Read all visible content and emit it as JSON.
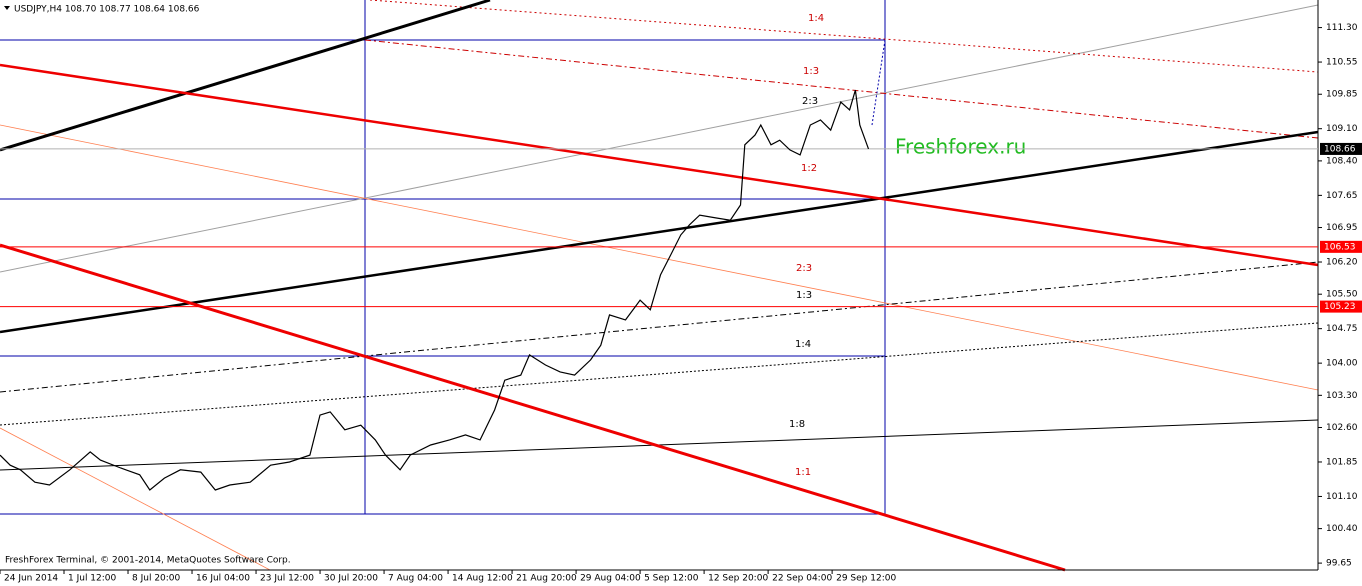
{
  "chart_data": {
    "type": "line",
    "header": "USDJPY,H4  108.70 108.77 108.64 108.66",
    "watermark": "Freshforex.ru",
    "footer": "FreshForex Terminal, © 2001-2014, MetaQuotes Software Corp.",
    "annotations": [
      "1:4",
      "1:3",
      "2:3",
      "1:2",
      "2:3",
      "1:3",
      "1:4",
      "1:8",
      "1:1"
    ],
    "x": [
      0,
      7,
      14,
      24,
      34,
      48,
      62,
      69,
      83,
      96,
      103,
      113,
      124,
      138,
      148,
      158,
      172,
      186,
      199,
      213,
      220,
      227,
      237,
      248,
      258,
      265,
      275,
      282,
      296,
      309,
      320,
      330,
      340,
      347,
      358,
      364,
      375,
      385,
      395,
      406,
      413,
      419,
      430,
      440,
      447,
      454,
      461,
      468,
      474,
      481,
      492,
      502,
      509,
      512,
      519,
      523,
      530,
      536,
      543,
      550,
      557,
      564,
      571,
      578,
      584,
      588,
      591,
      597
    ],
    "series": [
      {
        "name": "USDJPY,H4",
        "color": "#000000",
        "values": [
          102.0,
          101.78,
          101.68,
          101.41,
          101.35,
          101.68,
          102.07,
          101.89,
          101.72,
          101.57,
          101.24,
          101.5,
          101.68,
          101.63,
          101.24,
          101.35,
          101.41,
          101.78,
          101.85,
          102.0,
          102.87,
          102.94,
          102.55,
          102.65,
          102.33,
          102.0,
          101.68,
          102.0,
          102.22,
          102.33,
          102.44,
          102.33,
          102.98,
          103.63,
          103.74,
          104.18,
          103.96,
          103.81,
          103.74,
          104.07,
          104.39,
          105.05,
          104.94,
          105.37,
          105.16,
          105.92,
          106.35,
          106.79,
          107.01,
          107.22,
          107.16,
          107.11,
          107.44,
          108.75,
          108.96,
          109.18,
          108.75,
          108.85,
          108.64,
          108.53,
          109.18,
          109.29,
          109.07,
          109.68,
          109.51,
          109.94,
          109.18,
          108.66
        ]
      }
    ],
    "price_markers": [
      {
        "value": 108.66,
        "color": "#000000",
        "line": "#b0b0b0"
      },
      {
        "value": 106.53,
        "color": "#ff0000",
        "line": "#ff0000"
      },
      {
        "value": 105.23,
        "color": "#ff0000",
        "line": "#ff0000"
      }
    ],
    "xlim": [
      0,
      906
    ],
    "xticks": [
      {
        "value": 0,
        "label": "24 Jun 2014"
      },
      {
        "value": 44,
        "label": "1 Jul 12:00"
      },
      {
        "value": 88,
        "label": "8 Jul 20:00"
      },
      {
        "value": 132,
        "label": "16 Jul 04:00"
      },
      {
        "value": 176,
        "label": "23 Jul 12:00"
      },
      {
        "value": 220,
        "label": "30 Jul 20:00"
      },
      {
        "value": 264,
        "label": "7 Aug 04:00"
      },
      {
        "value": 308,
        "label": "14 Aug 12:00"
      },
      {
        "value": 352,
        "label": "21 Aug 20:00"
      },
      {
        "value": 396,
        "label": "29 Aug 04:00"
      },
      {
        "value": 440,
        "label": "5 Sep 12:00"
      },
      {
        "value": 484,
        "label": "12 Sep 20:00"
      },
      {
        "value": 528,
        "label": "22 Sep 04:00"
      },
      {
        "value": 572,
        "label": "29 Sep 12:00"
      }
    ],
    "ylim": [
      99.5,
      111.9
    ],
    "yticks": [
      {
        "value": 111.3,
        "label": "111.30"
      },
      110.55,
      109.85,
      {
        "value": 109.1,
        "label": "109.10"
      },
      {
        "value": 108.4,
        "label": "108.40"
      },
      107.65,
      106.95,
      {
        "value": 106.2,
        "label": "106.20"
      },
      {
        "value": 105.5,
        "label": "105.50"
      },
      104.75,
      {
        "value": 104.0,
        "label": "104.00"
      },
      {
        "value": 103.3,
        "label": "103.30"
      },
      {
        "value": 102.6,
        "label": "102.60"
      },
      101.85,
      {
        "value": 101.1,
        "label": "101.10"
      },
      {
        "value": 100.4,
        "label": "100.40"
      },
      99.65
    ]
  }
}
